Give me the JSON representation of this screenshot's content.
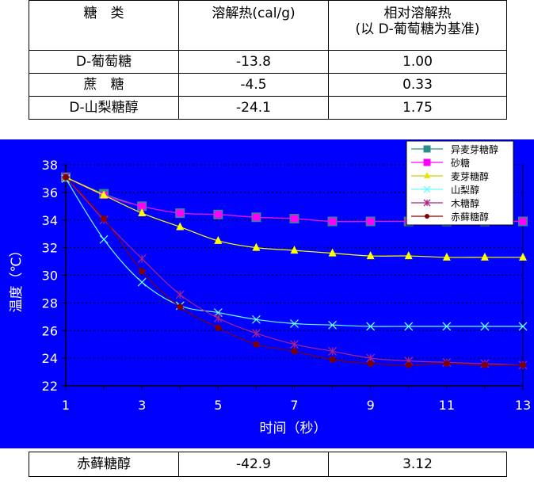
{
  "top_table": {
    "header": [
      "糖　类",
      "溶解热(cal/g)",
      "相对溶解热\n(以 D-葡萄糖为基准)"
    ],
    "rows": [
      [
        "D-葡萄糖",
        "-13.8",
        "1.00"
      ],
      [
        "蔗　糖",
        "-4.5",
        "0.33"
      ],
      [
        "D-山梨糖醇",
        "-24.1",
        "1.75"
      ]
    ]
  },
  "bottom_table": {
    "rows": [
      [
        "赤藓糖醇",
        "-42.9",
        "3.12"
      ]
    ]
  },
  "chart_data": {
    "type": "line",
    "xlabel": "时间（秒）",
    "ylabel": "温度（℃）",
    "xlim": [
      1,
      13
    ],
    "ylim": [
      22,
      38
    ],
    "xticks": [
      1,
      3,
      5,
      7,
      9,
      11,
      13
    ],
    "yticks": [
      22,
      24,
      26,
      28,
      30,
      32,
      34,
      36,
      38
    ],
    "grid": "horizontal dashed",
    "legend": "top-right",
    "background": "#0000ff",
    "x": [
      1,
      2,
      3,
      4,
      5,
      6,
      7,
      8,
      9,
      10,
      11,
      12,
      13
    ],
    "series": [
      {
        "name": "异麦芽糖醇",
        "color": "#2e8b8b",
        "marker": "square",
        "values": [
          37.1,
          35.9,
          35.0,
          34.5,
          34.4,
          34.2,
          34.1,
          33.9,
          33.9,
          33.9,
          33.9,
          33.9,
          33.9
        ]
      },
      {
        "name": "砂糖",
        "color": "#ff00ff",
        "marker": "square",
        "values": [
          37.1,
          35.8,
          35.0,
          34.5,
          34.4,
          34.2,
          34.1,
          33.9,
          33.9,
          33.9,
          33.9,
          33.9,
          33.9
        ]
      },
      {
        "name": "麦芽糖醇",
        "color": "#ffff00",
        "marker": "triangle",
        "values": [
          37.1,
          35.8,
          34.5,
          33.5,
          32.5,
          32.0,
          31.8,
          31.6,
          31.4,
          31.4,
          31.3,
          31.3,
          31.3
        ]
      },
      {
        "name": "山梨醇",
        "color": "#66ffff",
        "marker": "x",
        "values": [
          37.0,
          32.6,
          29.5,
          27.8,
          27.3,
          26.8,
          26.5,
          26.4,
          26.3,
          26.3,
          26.3,
          26.3,
          26.3
        ]
      },
      {
        "name": "木糖醇",
        "color": "#aa2288",
        "marker": "star",
        "values": [
          37.1,
          34.0,
          31.2,
          28.6,
          26.9,
          25.8,
          25.0,
          24.5,
          24.0,
          23.8,
          23.7,
          23.6,
          23.5
        ]
      },
      {
        "name": "赤藓糖醇",
        "color": "#800000",
        "marker": "circle",
        "values": [
          37.1,
          34.1,
          30.3,
          27.7,
          26.2,
          25.0,
          24.5,
          23.9,
          23.6,
          23.5,
          23.6,
          23.5,
          23.5
        ]
      }
    ]
  }
}
